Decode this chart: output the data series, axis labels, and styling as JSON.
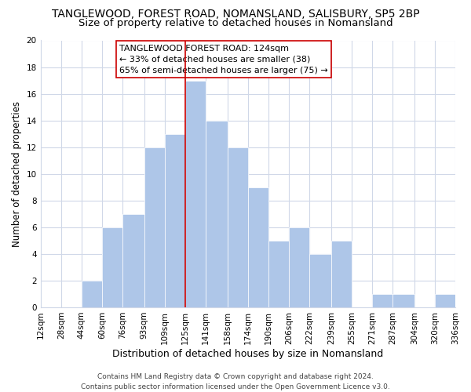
{
  "title": "TANGLEWOOD, FOREST ROAD, NOMANSLAND, SALISBURY, SP5 2BP",
  "subtitle": "Size of property relative to detached houses in Nomansland",
  "xlabel": "Distribution of detached houses by size in Nomansland",
  "ylabel": "Number of detached properties",
  "bin_edges": [
    12,
    28,
    44,
    60,
    76,
    93,
    109,
    125,
    141,
    158,
    174,
    190,
    206,
    222,
    239,
    255,
    271,
    287,
    304,
    320,
    336
  ],
  "bin_labels": [
    "12sqm",
    "28sqm",
    "44sqm",
    "60sqm",
    "76sqm",
    "93sqm",
    "109sqm",
    "125sqm",
    "141sqm",
    "158sqm",
    "174sqm",
    "190sqm",
    "206sqm",
    "222sqm",
    "239sqm",
    "255sqm",
    "271sqm",
    "287sqm",
    "304sqm",
    "320sqm",
    "336sqm"
  ],
  "counts": [
    0,
    0,
    2,
    6,
    7,
    12,
    13,
    17,
    14,
    12,
    9,
    5,
    6,
    4,
    5,
    0,
    1,
    1,
    0,
    1
  ],
  "bar_color": "#aec6e8",
  "bar_edge_color": "#ffffff",
  "vline_x": 125,
  "vline_color": "#cc0000",
  "annotation_line1": "TANGLEWOOD FOREST ROAD: 124sqm",
  "annotation_line2": "← 33% of detached houses are smaller (38)",
  "annotation_line3": "65% of semi-detached houses are larger (75) →",
  "annotation_box_edgecolor": "#cc0000",
  "annotation_box_facecolor": "#ffffff",
  "footer_text": "Contains HM Land Registry data © Crown copyright and database right 2024.\nContains public sector information licensed under the Open Government Licence v3.0.",
  "background_color": "#ffffff",
  "grid_color": "#d0d8e8",
  "ylim": [
    0,
    20
  ],
  "title_fontsize": 10,
  "subtitle_fontsize": 9.5,
  "xlabel_fontsize": 9,
  "ylabel_fontsize": 8.5,
  "tick_fontsize": 7.5,
  "annotation_fontsize": 8,
  "footer_fontsize": 6.5
}
